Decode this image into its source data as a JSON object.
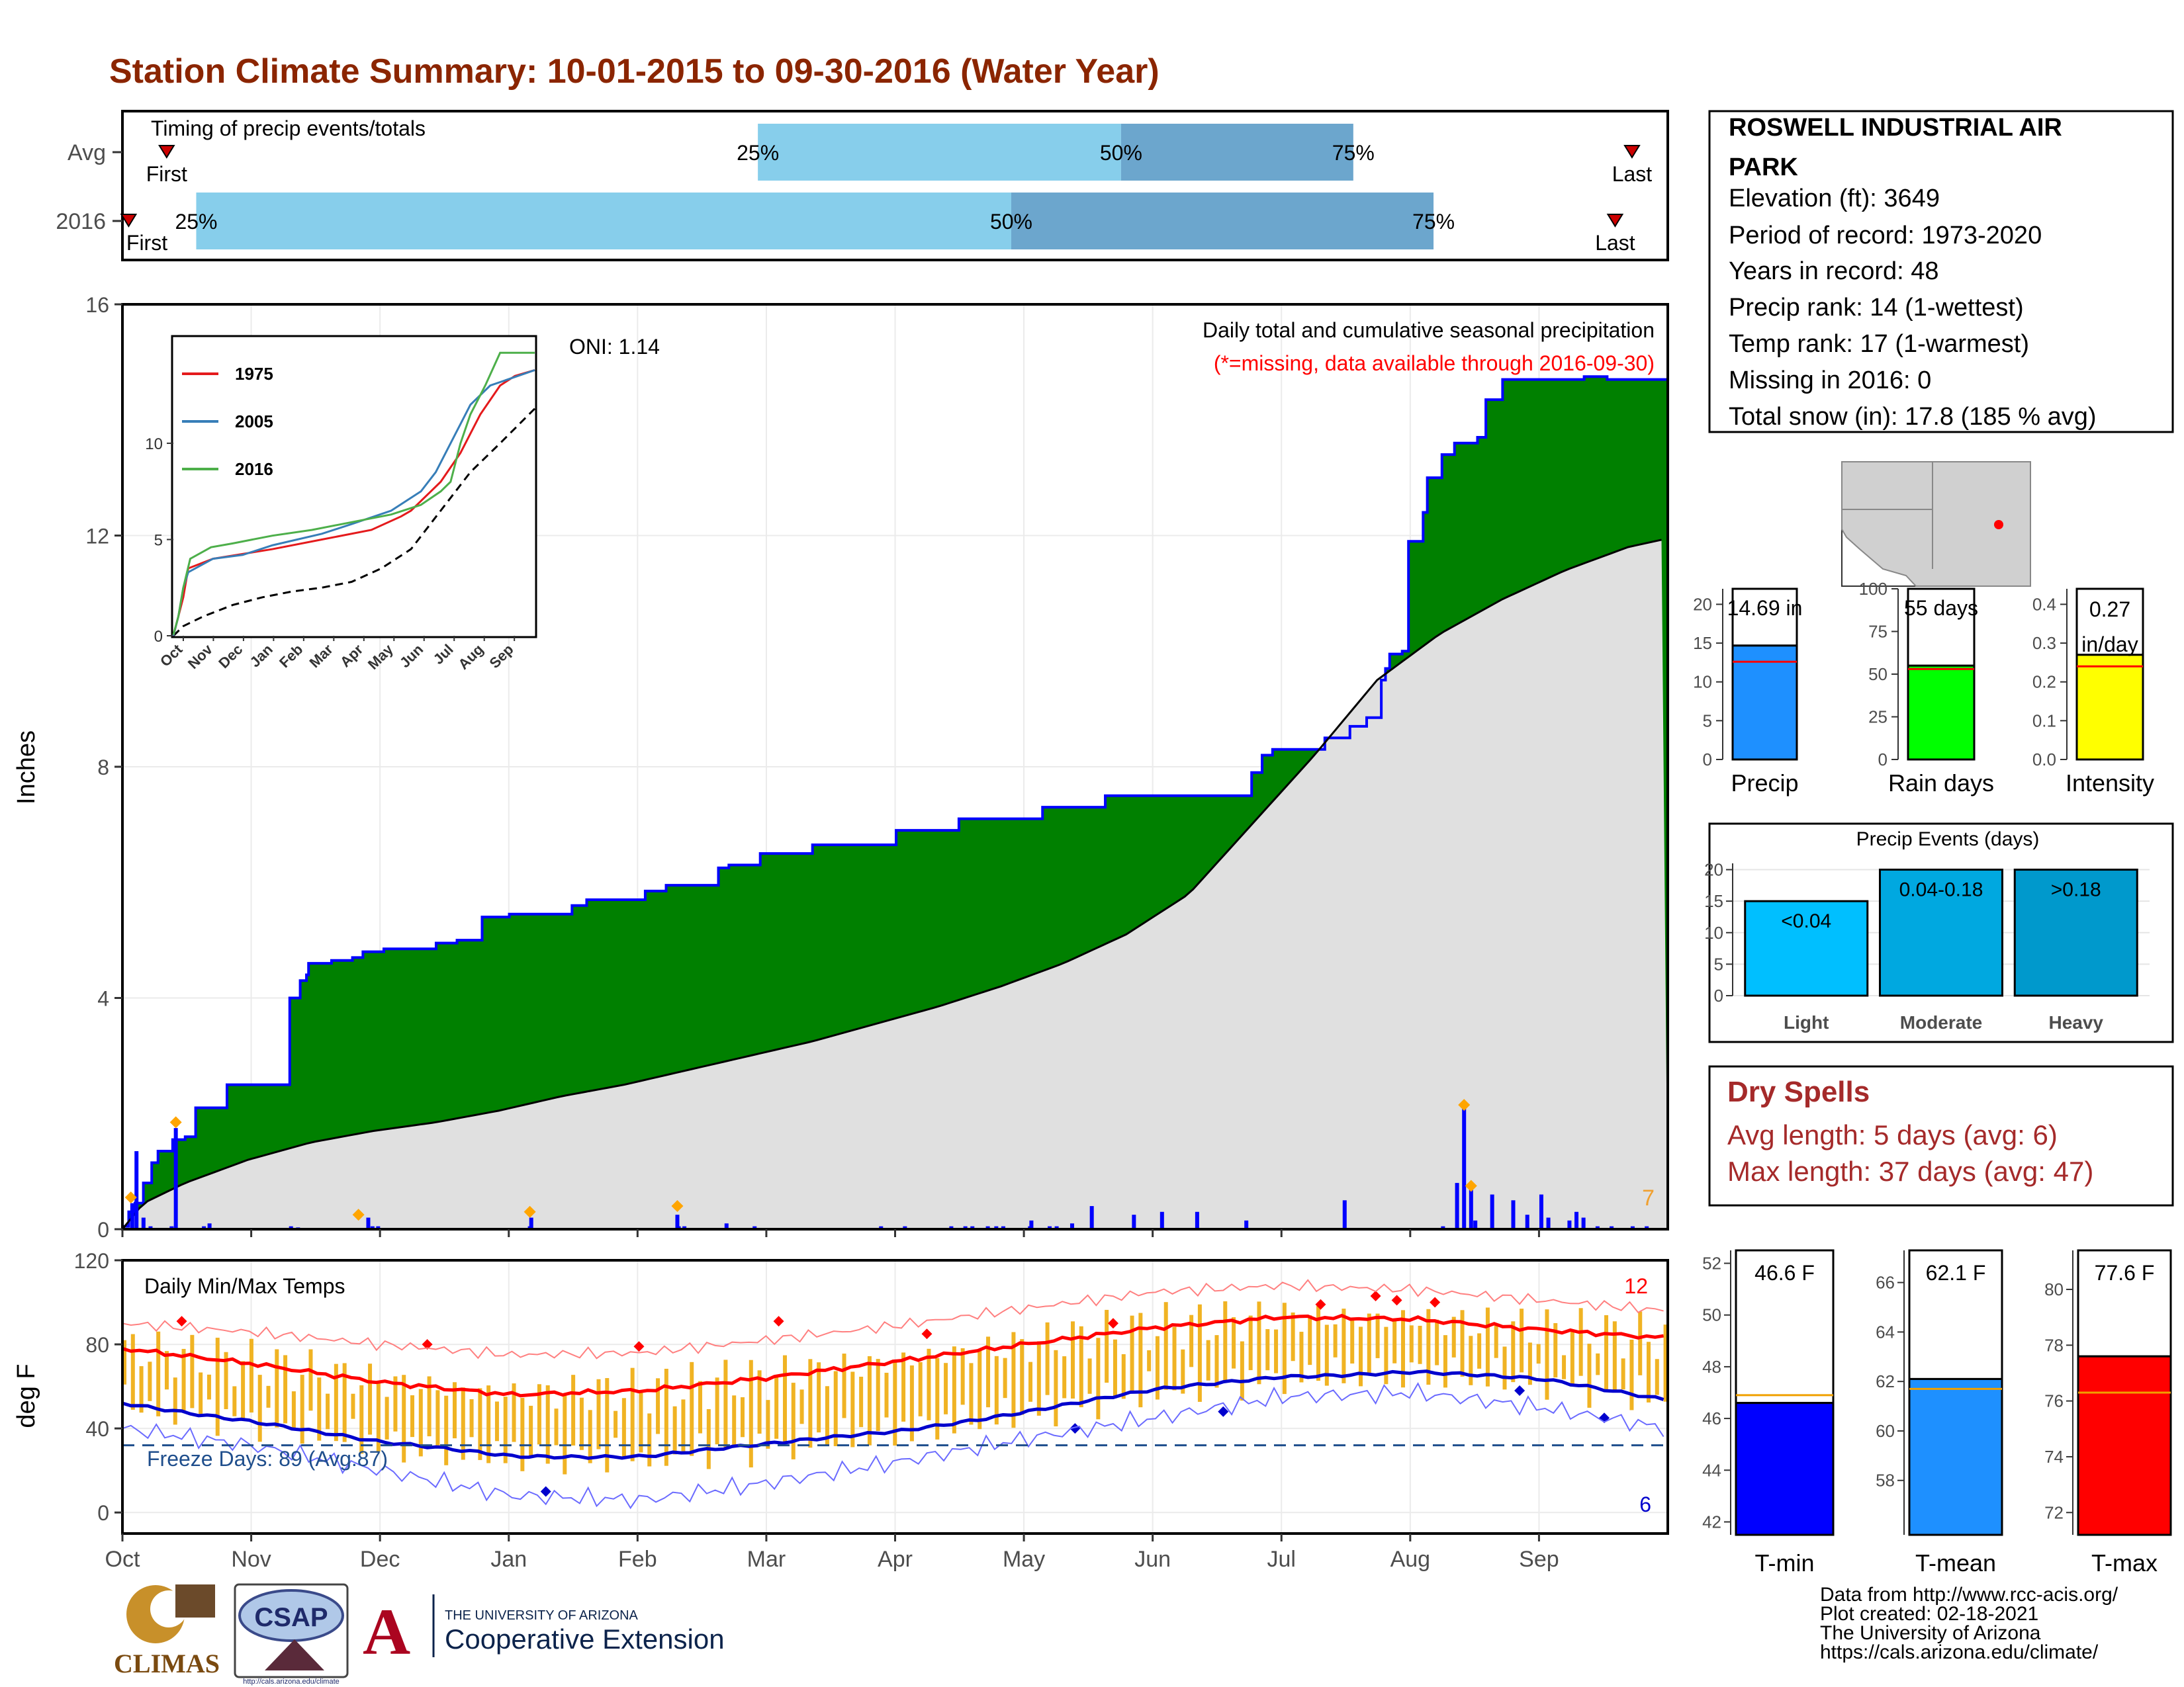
{
  "page_title": "Station Climate Summary: 10-01-2015 to 09-30-2016 (Water Year)",
  "months": [
    "Oct",
    "Nov",
    "Dec",
    "Jan",
    "Feb",
    "Mar",
    "Apr",
    "May",
    "Jun",
    "Jul",
    "Aug",
    "Sep"
  ],
  "colors": {
    "title": "#8b2500",
    "precip_green": "#008000",
    "precip_line": "#0000ff",
    "avg_fill": "#e0e0e0",
    "timing_light": "#87ceeb",
    "timing_dark": "#6ca6cd",
    "temp_bar": "#f0b323",
    "tmax_avg": "#ff0000",
    "tmin_avg": "#0000cd",
    "dry_spell_text": "#a52a2a"
  },
  "timing": {
    "title": "Timing of precip events/totals",
    "rows": [
      {
        "label": "Avg",
        "first_doy": 10,
        "p25_doy": 150,
        "p50_doy": 236,
        "p75_doy": 291,
        "last_doy": 357,
        "first_label": "First",
        "last_label": "Last",
        "p25_label": "25%",
        "p50_label": "50%",
        "p75_label": "75%"
      },
      {
        "label": "2016",
        "first_doy": 1,
        "p25_doy": 17,
        "p50_doy": 210,
        "p75_doy": 310,
        "last_doy": 353,
        "first_label": "First",
        "last_label": "Last",
        "p25_label": "25%",
        "p50_label": "50%",
        "p75_label": "75%"
      }
    ]
  },
  "station": {
    "name": "ROSWELL INDUSTRIAL AIR PARK",
    "elevation": "Elevation (ft): 3649",
    "period": "Period of record: 1973-2020",
    "years": "Years in record: 48",
    "precip_rank": "Precip rank: 14 (1-wettest)",
    "temp_rank": "Temp rank: 17 (1-warmest)",
    "missing": "Missing in 2016: 0",
    "snow": "Total snow (in): 17.8 (185 % avg)"
  },
  "precip_chart": {
    "ylabel": "Inches",
    "yticks": [
      0,
      4,
      8,
      12,
      16
    ],
    "ylim": [
      0,
      16
    ],
    "oni": "ONI: 1.14",
    "title": "Daily total and cumulative seasonal precipitation",
    "subtitle": "(*=missing, data available through 2016-09-30)",
    "corner_count": "7",
    "cumulative_2016": [
      [
        0,
        0.05
      ],
      [
        3,
        0.3
      ],
      [
        6,
        0.45
      ],
      [
        10,
        0.8
      ],
      [
        14,
        1.15
      ],
      [
        17,
        1.35
      ],
      [
        24,
        1.55
      ],
      [
        30,
        1.6
      ],
      [
        35,
        2.1
      ],
      [
        50,
        2.5
      ],
      [
        80,
        4.0
      ],
      [
        85,
        4.3
      ],
      [
        88,
        4.4
      ],
      [
        89,
        4.6
      ],
      [
        95,
        4.6
      ],
      [
        100,
        4.65
      ],
      [
        110,
        4.7
      ],
      [
        115,
        4.8
      ],
      [
        125,
        4.85
      ],
      [
        150,
        4.95
      ],
      [
        160,
        5.0
      ],
      [
        172,
        5.4
      ],
      [
        185,
        5.45
      ],
      [
        215,
        5.6
      ],
      [
        222,
        5.7
      ],
      [
        250,
        5.85
      ],
      [
        260,
        5.95
      ],
      [
        285,
        6.25
      ],
      [
        290,
        6.3
      ],
      [
        305,
        6.5
      ],
      [
        330,
        6.65
      ],
      [
        370,
        6.9
      ],
      [
        400,
        7.1
      ],
      [
        440,
        7.3
      ],
      [
        470,
        7.5
      ],
      [
        500,
        7.5
      ],
      [
        525,
        7.5
      ],
      [
        540,
        7.9
      ],
      [
        545,
        8.2
      ],
      [
        550,
        8.3
      ],
      [
        560,
        8.3
      ],
      [
        575,
        8.5
      ],
      [
        587,
        8.7
      ],
      [
        595,
        8.85
      ],
      [
        602,
        9.5
      ],
      [
        604,
        9.7
      ],
      [
        606,
        9.95
      ],
      [
        612,
        10.0
      ],
      [
        615,
        11.9
      ],
      [
        622,
        12.4
      ],
      [
        624,
        13.0
      ],
      [
        631,
        13.4
      ],
      [
        637,
        13.6
      ],
      [
        648,
        13.7
      ],
      [
        652,
        14.35
      ],
      [
        660,
        14.7
      ],
      [
        683,
        14.7
      ],
      [
        695,
        14.7
      ],
      [
        699,
        14.75
      ],
      [
        710,
        14.7
      ],
      [
        739,
        14.7
      ]
    ],
    "average_cumulative": [
      [
        0,
        0.0
      ],
      [
        10,
        0.45
      ],
      [
        30,
        0.8
      ],
      [
        60,
        1.2
      ],
      [
        90,
        1.5
      ],
      [
        120,
        1.7
      ],
      [
        150,
        1.85
      ],
      [
        180,
        2.05
      ],
      [
        210,
        2.3
      ],
      [
        240,
        2.5
      ],
      [
        270,
        2.75
      ],
      [
        300,
        3.0
      ],
      [
        330,
        3.25
      ],
      [
        360,
        3.55
      ],
      [
        390,
        3.85
      ],
      [
        420,
        4.2
      ],
      [
        450,
        4.6
      ],
      [
        480,
        5.1
      ],
      [
        510,
        5.8
      ],
      [
        540,
        7.0
      ],
      [
        570,
        8.2
      ],
      [
        600,
        9.5
      ],
      [
        630,
        10.3
      ],
      [
        660,
        10.9
      ],
      [
        690,
        11.4
      ],
      [
        720,
        11.8
      ],
      [
        739,
        11.95
      ]
    ],
    "daily_bars": [
      [
        7,
        0.45
      ],
      [
        10,
        1.35
      ],
      [
        15,
        0.2
      ],
      [
        20,
        0.05
      ],
      [
        35,
        0.05
      ],
      [
        38,
        1.75
      ],
      [
        58,
        0.05
      ],
      [
        62,
        0.1
      ],
      [
        120,
        0.05
      ],
      [
        125,
        0.03
      ],
      [
        175,
        0.2
      ],
      [
        178,
        0.05
      ],
      [
        182,
        0.05
      ],
      [
        290,
        0.05
      ],
      [
        291,
        0.2
      ],
      [
        395,
        0.25
      ],
      [
        396,
        0.05
      ],
      [
        400,
        0.05
      ],
      [
        430,
        0.1
      ],
      [
        450,
        0.05
      ],
      [
        540,
        0.05
      ],
      [
        557,
        0.05
      ],
      [
        590,
        0.05
      ],
      [
        600,
        0.05
      ],
      [
        605,
        0.05
      ],
      [
        616,
        0.05
      ],
      [
        622,
        0.05
      ],
      [
        627,
        0.05
      ],
      [
        646,
        0.05
      ],
      [
        647,
        0.15
      ],
      [
        660,
        0.05
      ],
      [
        665,
        0.05
      ],
      [
        676,
        0.1
      ],
      [
        690,
        0.4
      ],
      [
        720,
        0.25
      ],
      [
        740,
        0.3
      ],
      [
        765,
        0.3
      ],
      [
        800,
        0.15
      ],
      [
        870,
        0.5
      ],
      [
        940,
        0.05
      ],
      [
        950,
        0.8
      ],
      [
        955,
        2.1
      ],
      [
        960,
        0.7
      ],
      [
        963,
        0.15
      ],
      [
        975,
        0.6
      ],
      [
        990,
        0.5
      ],
      [
        1000,
        0.25
      ],
      [
        1010,
        0.6
      ],
      [
        1015,
        0.2
      ],
      [
        1030,
        0.15
      ],
      [
        1035,
        0.3
      ],
      [
        1040,
        0.2
      ],
      [
        1050,
        0.05
      ],
      [
        1060,
        0.05
      ],
      [
        1075,
        0.05
      ],
      [
        1085,
        0.05
      ]
    ],
    "highlight_events": [
      [
        6,
        0.55
      ],
      [
        38,
        1.85
      ],
      [
        168,
        0.25
      ],
      [
        290,
        0.3
      ],
      [
        395,
        0.4
      ],
      [
        955,
        2.15
      ],
      [
        960,
        0.75
      ]
    ]
  },
  "inset": {
    "legend": [
      "1975",
      "2005",
      "2016"
    ],
    "legend_colors": [
      "#e41a1c",
      "#377eb8",
      "#4daf4a"
    ],
    "yticks": [
      0,
      5,
      10
    ],
    "months": [
      "Oct",
      "Nov",
      "Dec",
      "Jan",
      "Feb",
      "Mar",
      "Apr",
      "May",
      "Jun",
      "Jul",
      "Aug",
      "Sep"
    ],
    "avg": [
      [
        0,
        0
      ],
      [
        10,
        0.5
      ],
      [
        30,
        1.0
      ],
      [
        60,
        1.6
      ],
      [
        90,
        2.0
      ],
      [
        120,
        2.3
      ],
      [
        150,
        2.5
      ],
      [
        180,
        2.8
      ],
      [
        210,
        3.5
      ],
      [
        240,
        4.5
      ],
      [
        270,
        6.5
      ],
      [
        300,
        8.5
      ],
      [
        330,
        10.0
      ],
      [
        365,
        11.8
      ]
    ],
    "s1975": [
      [
        0,
        0
      ],
      [
        5,
        1.0
      ],
      [
        10,
        2.0
      ],
      [
        15,
        3.5
      ],
      [
        30,
        3.8
      ],
      [
        40,
        4.0
      ],
      [
        100,
        4.5
      ],
      [
        150,
        5.0
      ],
      [
        200,
        5.5
      ],
      [
        230,
        6.2
      ],
      [
        240,
        6.5
      ],
      [
        260,
        7.5
      ],
      [
        270,
        8.0
      ],
      [
        290,
        9.5
      ],
      [
        300,
        10.5
      ],
      [
        310,
        11.5
      ],
      [
        330,
        13.0
      ],
      [
        345,
        13.5
      ],
      [
        365,
        13.8
      ]
    ],
    "s2005": [
      [
        0,
        0
      ],
      [
        5,
        1.0
      ],
      [
        10,
        2.5
      ],
      [
        15,
        3.3
      ],
      [
        40,
        4.0
      ],
      [
        70,
        4.2
      ],
      [
        100,
        4.7
      ],
      [
        150,
        5.3
      ],
      [
        180,
        5.8
      ],
      [
        220,
        6.5
      ],
      [
        250,
        7.5
      ],
      [
        265,
        8.5
      ],
      [
        285,
        10.5
      ],
      [
        300,
        12.0
      ],
      [
        320,
        13.0
      ],
      [
        365,
        13.8
      ]
    ],
    "s2016": [
      [
        0,
        0.05
      ],
      [
        5,
        1.0
      ],
      [
        10,
        2.5
      ],
      [
        17,
        4.0
      ],
      [
        38,
        4.6
      ],
      [
        60,
        4.8
      ],
      [
        100,
        5.2
      ],
      [
        140,
        5.5
      ],
      [
        180,
        5.9
      ],
      [
        220,
        6.3
      ],
      [
        250,
        6.8
      ],
      [
        270,
        7.5
      ],
      [
        280,
        8.0
      ],
      [
        290,
        10.0
      ],
      [
        300,
        11.5
      ],
      [
        315,
        13.0
      ],
      [
        330,
        14.7
      ],
      [
        365,
        14.7
      ]
    ]
  },
  "temp_chart": {
    "ylabel": "deg F",
    "yticks": [
      0,
      40,
      80,
      120
    ],
    "ylim": [
      -10,
      120
    ],
    "title": "Daily Min/Max Temps",
    "freeze_label": "Freeze Days: 89 (Avg:87)",
    "freeze_temp": 32,
    "max_count": "12",
    "min_count": "6",
    "avg_max": [
      [
        0,
        78
      ],
      [
        30,
        71
      ],
      [
        61,
        62
      ],
      [
        92,
        56
      ],
      [
        123,
        58
      ],
      [
        152,
        64
      ],
      [
        183,
        72
      ],
      [
        213,
        80
      ],
      [
        244,
        88
      ],
      [
        274,
        93
      ],
      [
        305,
        92
      ],
      [
        335,
        87
      ],
      [
        365,
        83
      ]
    ],
    "avg_min": [
      [
        0,
        52
      ],
      [
        30,
        44
      ],
      [
        61,
        33
      ],
      [
        92,
        27
      ],
      [
        123,
        27
      ],
      [
        152,
        32
      ],
      [
        183,
        39
      ],
      [
        213,
        48
      ],
      [
        244,
        58
      ],
      [
        274,
        65
      ],
      [
        305,
        67
      ],
      [
        335,
        63
      ],
      [
        365,
        54
      ]
    ],
    "record_max": [
      [
        0,
        90
      ],
      [
        30,
        86
      ],
      [
        61,
        80
      ],
      [
        92,
        75
      ],
      [
        123,
        76
      ],
      [
        152,
        82
      ],
      [
        183,
        89
      ],
      [
        213,
        97
      ],
      [
        244,
        105
      ],
      [
        274,
        108
      ],
      [
        305,
        106
      ],
      [
        335,
        101
      ],
      [
        365,
        96
      ]
    ],
    "record_min": [
      [
        0,
        40
      ],
      [
        30,
        32
      ],
      [
        61,
        20
      ],
      [
        92,
        8
      ],
      [
        123,
        6
      ],
      [
        152,
        14
      ],
      [
        183,
        24
      ],
      [
        213,
        35
      ],
      [
        244,
        45
      ],
      [
        274,
        55
      ],
      [
        305,
        57
      ],
      [
        335,
        50
      ],
      [
        365,
        40
      ]
    ]
  },
  "precip_bars": {
    "value_label": "14.69 in",
    "value": 14.69,
    "avg": 12.6,
    "label": "Precip",
    "yticks": [
      0,
      5,
      10,
      15,
      20
    ],
    "ylim": [
      0,
      22
    ]
  },
  "raindays_bars": {
    "value_label": "55 days",
    "value": 55,
    "avg": 53,
    "label": "Rain days",
    "yticks": [
      0,
      25,
      50,
      75,
      100
    ],
    "ylim": [
      0,
      100
    ]
  },
  "intensity_bars": {
    "value_label": "0.27 in/day",
    "value_line1": "0.27",
    "value_line2": "in/day",
    "value": 0.27,
    "avg": 0.24,
    "label": "Intensity",
    "yticks": [
      "0.0",
      "0.1",
      "0.2",
      "0.3",
      "0.4"
    ],
    "ylim": [
      0,
      0.44
    ]
  },
  "events": {
    "title": "Precip Events (days)",
    "yticks": [
      0,
      5,
      10,
      15,
      20
    ],
    "ylim": [
      0,
      21
    ],
    "categories": [
      "Light",
      "Moderate",
      "Heavy"
    ],
    "labels": [
      "<0.04",
      "0.04-0.18",
      ">0.18"
    ],
    "values": [
      15,
      20,
      20
    ],
    "colors": [
      "#00bfff",
      "#00a8e0",
      "#0099cc"
    ]
  },
  "dry_spells": {
    "title": "Dry Spells",
    "avg": "Avg length: 5 days (avg: 6)",
    "max": "Max length: 37 days (avg: 47)"
  },
  "temp_bars": [
    {
      "label": "T-min",
      "value_label": "46.6 F",
      "value": 46.6,
      "avg": 46.9,
      "ylim": [
        41.5,
        52.5
      ],
      "yticks": [
        42,
        44,
        46,
        48,
        50,
        52
      ],
      "color": "#0000ff"
    },
    {
      "label": "T-mean",
      "value_label": "62.1 F",
      "value": 62.1,
      "avg": 61.7,
      "ylim": [
        55.8,
        67.3
      ],
      "yticks": [
        58,
        60,
        62,
        64,
        66
      ],
      "color": "#1e90ff"
    },
    {
      "label": "T-max",
      "value_label": "77.6 F",
      "value": 77.6,
      "avg": 76.3,
      "ylim": [
        71.2,
        81.4
      ],
      "yticks": [
        72,
        74,
        76,
        78,
        80
      ],
      "color": "#ff0000"
    }
  ],
  "footer": {
    "line1": "Data from http://www.rcc-acis.org/",
    "line2": "Plot created: 02-18-2021",
    "line3": "The University of Arizona",
    "line4": "https://cals.arizona.edu/climate/"
  },
  "logos": {
    "climas": "CLIMAS",
    "csap": "CSAP",
    "csap_url": "http://cals.arizona.edu/climate",
    "ua_small": "THE UNIVERSITY OF ARIZONA",
    "ua_big": "Cooperative Extension"
  }
}
